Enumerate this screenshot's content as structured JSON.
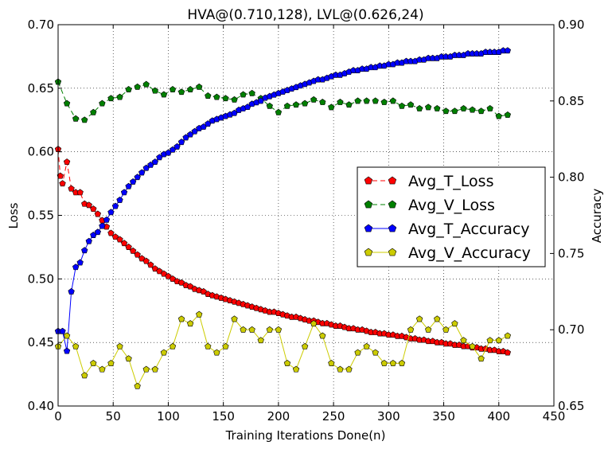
{
  "chart_data": {
    "type": "line",
    "title": "HVA@(0.710,128), LVL@(0.626,24)",
    "xlabel": "Training Iterations Done(n)",
    "ylabel_left": "Loss",
    "ylabel_right": "Accuracy",
    "xlim": [
      0,
      450
    ],
    "ylim_left": [
      0.4,
      0.7
    ],
    "ylim_right": [
      0.65,
      0.9
    ],
    "xticks": [
      "0",
      "50",
      "100",
      "150",
      "200",
      "250",
      "300",
      "350",
      "400",
      "450"
    ],
    "yticks_left": [
      "0.40",
      "0.45",
      "0.50",
      "0.55",
      "0.60",
      "0.65",
      "0.70"
    ],
    "yticks_right": [
      "0.65",
      "0.70",
      "0.75",
      "0.80",
      "0.85",
      "0.90"
    ],
    "grid": true,
    "legend_position": "center-right",
    "series": [
      {
        "name": "Avg_T_Loss",
        "axis": "left",
        "color": "#ff0000",
        "linestyle": "dashed",
        "x": [
          0,
          2,
          4,
          8,
          12,
          16,
          20,
          24,
          28,
          32,
          36,
          40,
          44,
          48,
          52,
          56,
          60,
          64,
          68,
          72,
          76,
          80,
          84,
          88,
          92,
          96,
          100,
          104,
          108,
          112,
          116,
          120,
          124,
          128,
          132,
          136,
          140,
          144,
          148,
          152,
          156,
          160,
          164,
          168,
          172,
          176,
          180,
          184,
          188,
          192,
          196,
          200,
          204,
          208,
          212,
          216,
          220,
          224,
          228,
          232,
          236,
          240,
          244,
          248,
          252,
          256,
          260,
          264,
          268,
          272,
          276,
          280,
          284,
          288,
          292,
          296,
          300,
          304,
          308,
          312,
          316,
          320,
          324,
          328,
          332,
          336,
          340,
          344,
          348,
          352,
          356,
          360,
          364,
          368,
          372,
          376,
          380,
          384,
          388,
          392,
          396,
          400,
          404,
          408
        ],
        "y": [
          0.602,
          0.581,
          0.575,
          0.592,
          0.571,
          0.568,
          0.568,
          0.559,
          0.558,
          0.555,
          0.551,
          0.546,
          0.541,
          0.536,
          0.533,
          0.531,
          0.528,
          0.525,
          0.522,
          0.519,
          0.516,
          0.514,
          0.511,
          0.508,
          0.506,
          0.504,
          0.502,
          0.5,
          0.498,
          0.497,
          0.495,
          0.494,
          0.492,
          0.491,
          0.49,
          0.488,
          0.487,
          0.486,
          0.485,
          0.484,
          0.483,
          0.482,
          0.481,
          0.48,
          0.479,
          0.478,
          0.477,
          0.476,
          0.475,
          0.474,
          0.474,
          0.473,
          0.472,
          0.471,
          0.47,
          0.47,
          0.469,
          0.468,
          0.467,
          0.467,
          0.466,
          0.465,
          0.465,
          0.464,
          0.463,
          0.463,
          0.462,
          0.461,
          0.461,
          0.46,
          0.46,
          0.459,
          0.458,
          0.458,
          0.457,
          0.457,
          0.456,
          0.456,
          0.455,
          0.455,
          0.454,
          0.453,
          0.453,
          0.452,
          0.452,
          0.451,
          0.451,
          0.45,
          0.45,
          0.449,
          0.449,
          0.448,
          0.448,
          0.447,
          0.447,
          0.446,
          0.446,
          0.445,
          0.445,
          0.444,
          0.444,
          0.443,
          0.443,
          0.442
        ]
      },
      {
        "name": "Avg_V_Loss",
        "axis": "left",
        "color": "#008000",
        "linestyle": "dashed",
        "x": [
          0,
          8,
          16,
          24,
          32,
          40,
          48,
          56,
          64,
          72,
          80,
          88,
          96,
          104,
          112,
          120,
          128,
          136,
          144,
          152,
          160,
          168,
          176,
          184,
          192,
          200,
          208,
          216,
          224,
          232,
          240,
          248,
          256,
          264,
          272,
          280,
          288,
          296,
          304,
          312,
          320,
          328,
          336,
          344,
          352,
          360,
          368,
          376,
          384,
          392,
          400,
          408
        ],
        "y": [
          0.655,
          0.638,
          0.626,
          0.625,
          0.631,
          0.638,
          0.642,
          0.643,
          0.649,
          0.651,
          0.653,
          0.648,
          0.645,
          0.649,
          0.647,
          0.649,
          0.651,
          0.644,
          0.643,
          0.642,
          0.641,
          0.645,
          0.646,
          0.642,
          0.636,
          0.631,
          0.636,
          0.637,
          0.638,
          0.641,
          0.639,
          0.635,
          0.639,
          0.637,
          0.64,
          0.64,
          0.64,
          0.639,
          0.64,
          0.636,
          0.637,
          0.634,
          0.635,
          0.634,
          0.632,
          0.632,
          0.634,
          0.633,
          0.632,
          0.634,
          0.628,
          0.629
        ]
      },
      {
        "name": "Avg_T_Accuracy",
        "axis": "right",
        "color": "#0000ff",
        "linestyle": "solid",
        "x": [
          0,
          4,
          8,
          12,
          16,
          20,
          24,
          28,
          32,
          36,
          40,
          44,
          48,
          52,
          56,
          60,
          64,
          68,
          72,
          76,
          80,
          84,
          88,
          92,
          96,
          100,
          104,
          108,
          112,
          116,
          120,
          124,
          128,
          132,
          136,
          140,
          144,
          148,
          152,
          156,
          160,
          164,
          168,
          172,
          176,
          180,
          184,
          188,
          192,
          196,
          200,
          204,
          208,
          212,
          216,
          220,
          224,
          228,
          232,
          236,
          240,
          244,
          248,
          252,
          256,
          260,
          264,
          268,
          272,
          276,
          280,
          284,
          288,
          292,
          296,
          300,
          304,
          308,
          312,
          316,
          320,
          324,
          328,
          332,
          336,
          340,
          344,
          348,
          352,
          356,
          360,
          364,
          368,
          372,
          376,
          380,
          384,
          388,
          392,
          396,
          400,
          404,
          408
        ],
        "y": [
          0.699,
          0.699,
          0.686,
          0.725,
          0.741,
          0.744,
          0.752,
          0.758,
          0.762,
          0.764,
          0.768,
          0.772,
          0.777,
          0.781,
          0.785,
          0.79,
          0.794,
          0.797,
          0.8,
          0.803,
          0.806,
          0.808,
          0.81,
          0.813,
          0.815,
          0.816,
          0.818,
          0.82,
          0.823,
          0.826,
          0.828,
          0.83,
          0.832,
          0.833,
          0.835,
          0.837,
          0.838,
          0.839,
          0.84,
          0.841,
          0.842,
          0.844,
          0.845,
          0.846,
          0.848,
          0.849,
          0.85,
          0.852,
          0.853,
          0.854,
          0.855,
          0.856,
          0.857,
          0.858,
          0.859,
          0.86,
          0.861,
          0.862,
          0.863,
          0.864,
          0.864,
          0.865,
          0.866,
          0.867,
          0.867,
          0.868,
          0.869,
          0.87,
          0.87,
          0.871,
          0.871,
          0.872,
          0.872,
          0.873,
          0.873,
          0.874,
          0.874,
          0.875,
          0.875,
          0.876,
          0.876,
          0.876,
          0.877,
          0.877,
          0.878,
          0.878,
          0.878,
          0.879,
          0.879,
          0.879,
          0.88,
          0.88,
          0.88,
          0.881,
          0.881,
          0.881,
          0.881,
          0.882,
          0.882,
          0.882,
          0.882,
          0.883,
          0.883
        ]
      },
      {
        "name": "Avg_V_Accuracy",
        "axis": "right",
        "color": "#cccc00",
        "linestyle": "solid",
        "x": [
          0,
          8,
          16,
          24,
          32,
          40,
          48,
          56,
          64,
          72,
          80,
          88,
          96,
          104,
          112,
          120,
          128,
          136,
          144,
          152,
          160,
          168,
          176,
          184,
          192,
          200,
          208,
          216,
          224,
          232,
          240,
          248,
          256,
          264,
          272,
          280,
          288,
          296,
          304,
          312,
          320,
          328,
          336,
          344,
          352,
          360,
          368,
          376,
          384,
          392,
          400,
          408
        ],
        "y": [
          0.689,
          0.696,
          0.689,
          0.67,
          0.678,
          0.674,
          0.678,
          0.689,
          0.681,
          0.663,
          0.674,
          0.674,
          0.685,
          0.689,
          0.707,
          0.704,
          0.71,
          0.689,
          0.685,
          0.689,
          0.707,
          0.7,
          0.7,
          0.693,
          0.7,
          0.7,
          0.678,
          0.674,
          0.689,
          0.704,
          0.696,
          0.678,
          0.674,
          0.674,
          0.685,
          0.689,
          0.685,
          0.678,
          0.678,
          0.678,
          0.7,
          0.707,
          0.7,
          0.707,
          0.7,
          0.704,
          0.693,
          0.689,
          0.681,
          0.693,
          0.693,
          0.696
        ]
      }
    ]
  }
}
